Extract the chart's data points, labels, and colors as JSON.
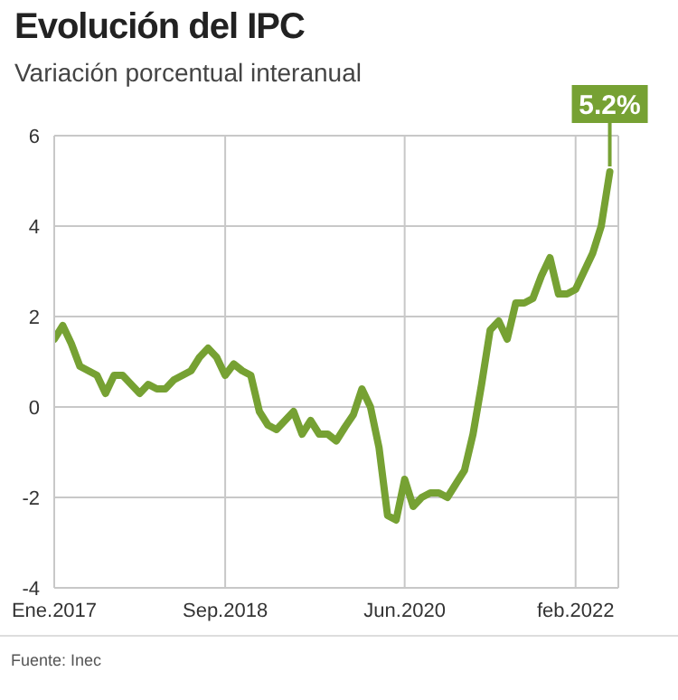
{
  "chart_data": {
    "type": "line",
    "title": "Evolución del IPC",
    "subtitle": "Variación porcentual interanual",
    "x": [
      "2017-01",
      "2017-02",
      "2017-03",
      "2017-04",
      "2017-05",
      "2017-06",
      "2017-07",
      "2017-08",
      "2017-09",
      "2017-10",
      "2017-11",
      "2017-12",
      "2018-01",
      "2018-02",
      "2018-03",
      "2018-04",
      "2018-05",
      "2018-06",
      "2018-07",
      "2018-08",
      "2018-09",
      "2018-10",
      "2018-11",
      "2018-12",
      "2019-01",
      "2019-02",
      "2019-03",
      "2019-04",
      "2019-05",
      "2019-06",
      "2019-07",
      "2019-08",
      "2019-09",
      "2019-10",
      "2019-11",
      "2019-12",
      "2020-01",
      "2020-02",
      "2020-03",
      "2020-04",
      "2020-05",
      "2020-06",
      "2020-07",
      "2020-08",
      "2020-09",
      "2020-10",
      "2020-11",
      "2020-12",
      "2021-01",
      "2021-02",
      "2021-03",
      "2021-04",
      "2021-05",
      "2021-06",
      "2021-07",
      "2021-08",
      "2021-09",
      "2021-10",
      "2021-11",
      "2021-12",
      "2022-01",
      "2022-02",
      "2022-03",
      "2022-04",
      "2022-05",
      "2022-06"
    ],
    "series": [
      {
        "color": "#76a133",
        "values": [
          1.5,
          1.8,
          1.4,
          0.9,
          0.8,
          0.7,
          0.3,
          0.7,
          0.7,
          0.5,
          0.3,
          0.5,
          0.4,
          0.4,
          0.6,
          0.7,
          0.8,
          1.1,
          1.3,
          1.1,
          0.7,
          0.95,
          0.8,
          0.7,
          -0.1,
          -0.4,
          -0.5,
          -0.3,
          -0.1,
          -0.6,
          -0.3,
          -0.6,
          -0.6,
          -0.75,
          -0.45,
          -0.17,
          0.4,
          0.0,
          -0.9,
          -2.4,
          -2.5,
          -1.6,
          -2.2,
          -2.0,
          -1.9,
          -1.9,
          -2.0,
          -1.7,
          -1.4,
          -0.6,
          0.5,
          1.7,
          1.9,
          1.5,
          2.3,
          2.3,
          2.4,
          2.9,
          3.3,
          2.5,
          2.5,
          2.6,
          3.0,
          3.4,
          4.0,
          5.2
        ]
      }
    ],
    "xlim": [
      "2017-01",
      "2022-07"
    ],
    "xticks": [
      {
        "value": "2017-01",
        "label": "Ene.2017"
      },
      {
        "value": "2018-09",
        "label": "Sep.2018"
      },
      {
        "value": "2020-06",
        "label": "Jun.2020"
      },
      {
        "value": "2022-02",
        "label": "feb.2022"
      }
    ],
    "ylim": [
      -4,
      6
    ],
    "yticks": [
      -4,
      -2,
      0,
      2,
      4,
      6
    ],
    "grid": true,
    "marker": "none",
    "line_style": "solid",
    "annotations": [
      {
        "text": "5.2%",
        "x": "2022-06",
        "y": 5.2
      },
      "Fuente: Inec"
    ]
  }
}
